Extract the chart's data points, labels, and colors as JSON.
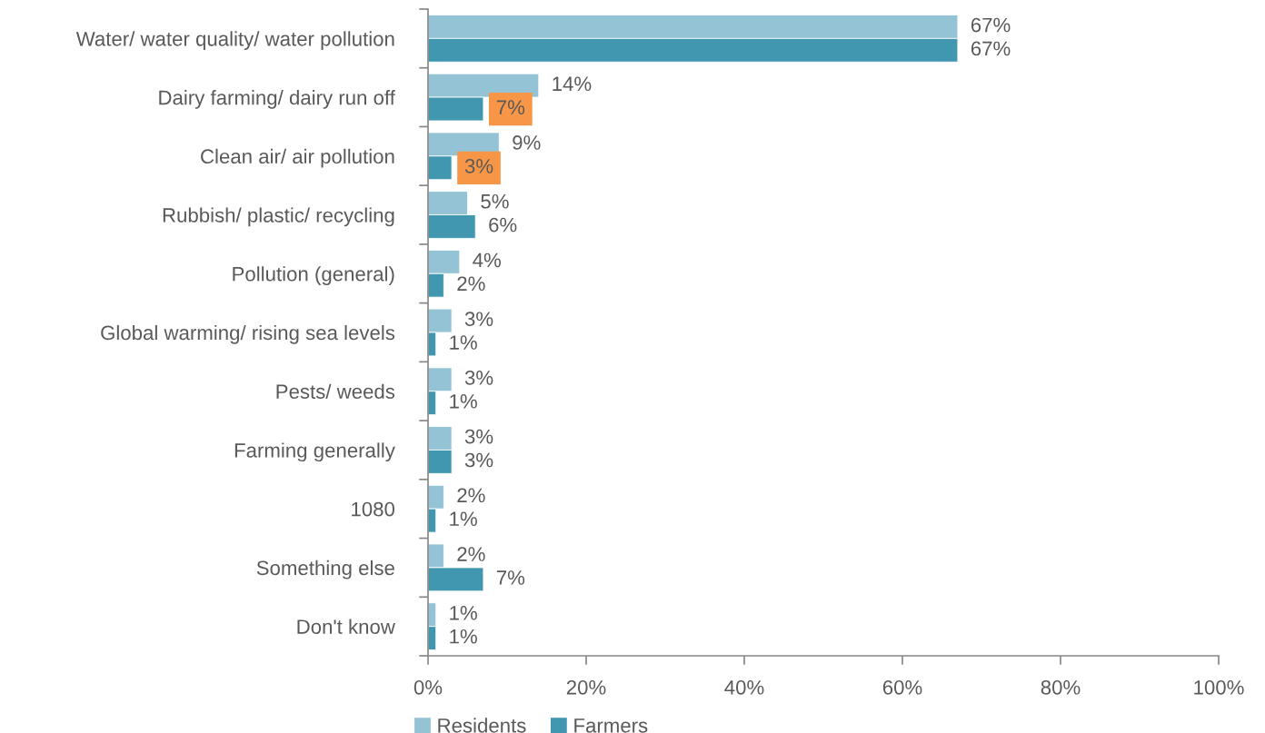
{
  "chart_data": {
    "type": "bar",
    "orientation": "horizontal",
    "categories": [
      "Water/ water quality/ water pollution",
      "Dairy farming/ dairy run off",
      "Clean air/ air pollution",
      "Rubbish/ plastic/ recycling",
      "Pollution (general)",
      "Global warming/ rising sea levels",
      "Pests/ weeds",
      "Farming generally",
      "1080",
      "Something else",
      "Don't know"
    ],
    "series": [
      {
        "name": "Residents",
        "color": "#93c3d4",
        "values": [
          67,
          14,
          9,
          5,
          4,
          3,
          3,
          3,
          2,
          2,
          1
        ],
        "value_labels": [
          "67%",
          "14%",
          "9%",
          "5%",
          "4%",
          "3%",
          "3%",
          "3%",
          "2%",
          "2%",
          "1%"
        ]
      },
      {
        "name": "Farmers",
        "color": "#4297b0",
        "values": [
          67,
          7,
          3,
          6,
          2,
          1,
          1,
          3,
          1,
          7,
          1
        ],
        "value_labels": [
          "67%",
          null,
          null,
          "6%",
          "2%",
          "1%",
          "1%",
          "3%",
          "1%",
          "7%",
          "1%"
        ]
      }
    ],
    "annotations": [
      {
        "text": "7%",
        "x": 7,
        "y": "Dairy farming/ dairy run off"
      },
      {
        "text": "3%",
        "x": 3,
        "y": "Clean air/ air pollution"
      }
    ],
    "xlim": [
      0,
      100
    ],
    "xticks": [
      {
        "value": 0,
        "label": "0%"
      },
      {
        "value": 20,
        "label": "20%"
      },
      {
        "value": 40,
        "label": "40%"
      },
      {
        "value": 60,
        "label": "60%"
      },
      {
        "value": 80,
        "label": "80%"
      },
      {
        "value": 100,
        "label": "100%"
      }
    ],
    "grid": false,
    "legend": "bottom"
  }
}
